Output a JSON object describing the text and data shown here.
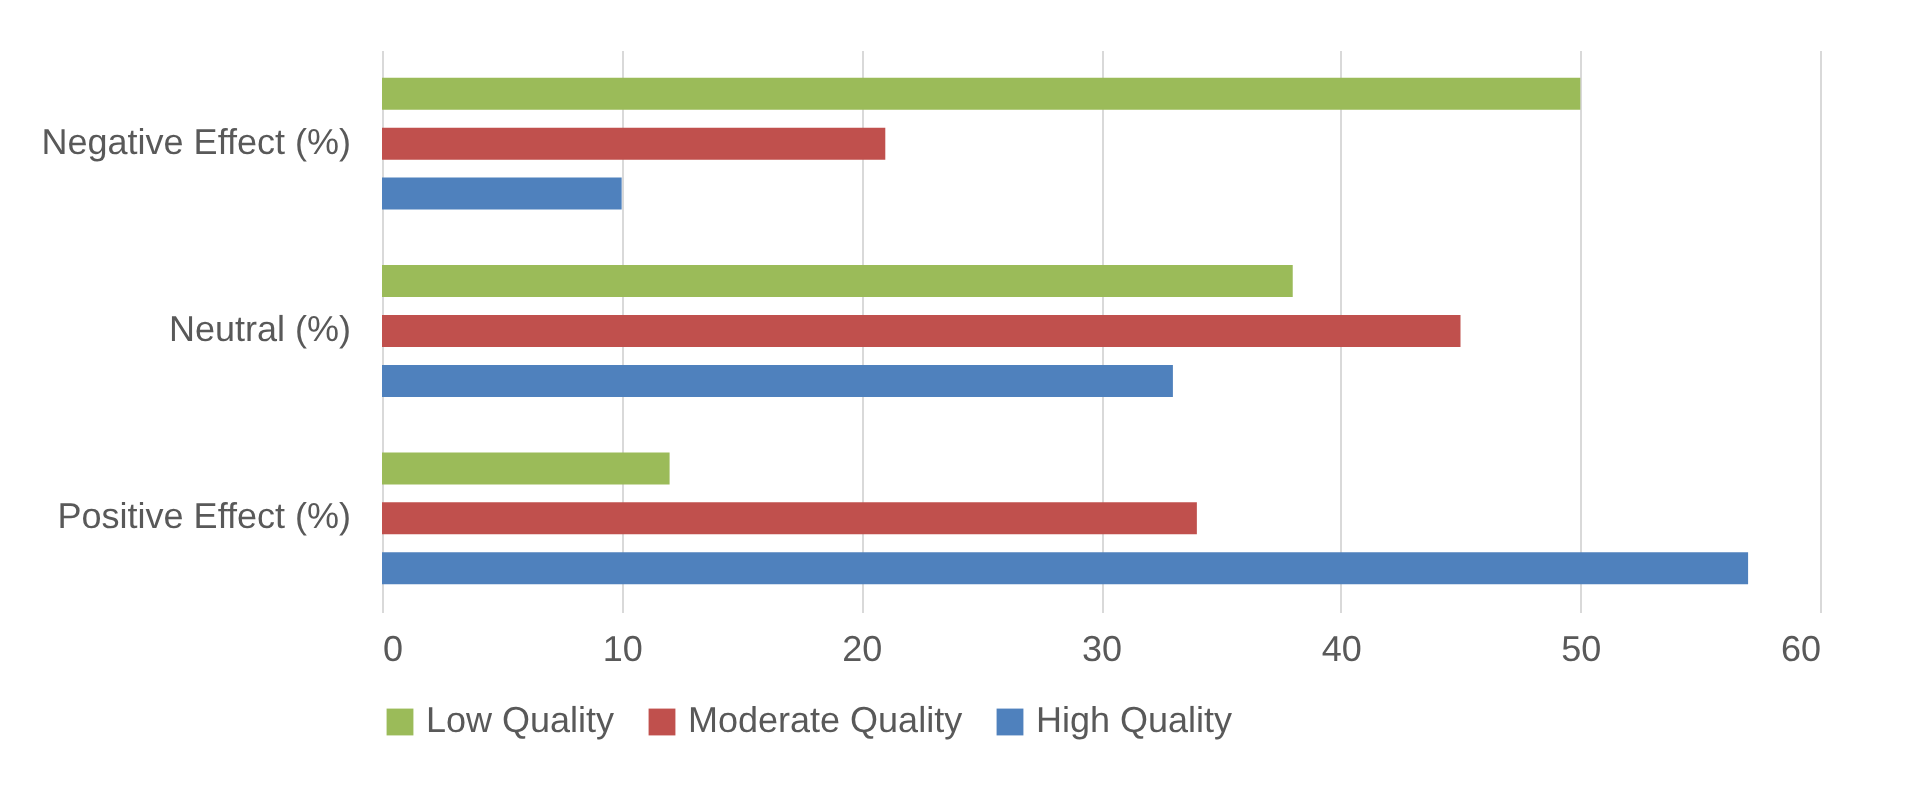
{
  "chart_data": {
    "type": "bar",
    "orientation": "horizontal",
    "categories": [
      "Negative Effect (%)",
      "Neutral (%)",
      "Positive Effect (%)"
    ],
    "series": [
      {
        "name": "Low Quality",
        "color": "#9bbb59",
        "values": [
          50,
          38,
          12
        ]
      },
      {
        "name": "Moderate Quality",
        "color": "#c0504d",
        "values": [
          21,
          45,
          34
        ]
      },
      {
        "name": "High Quality",
        "color": "#4f81bd",
        "values": [
          10,
          33,
          57
        ]
      }
    ],
    "xlim": [
      0,
      60
    ],
    "xticks": [
      0,
      10,
      20,
      30,
      40,
      50,
      60
    ],
    "grid": "x",
    "legend": "bottom"
  }
}
